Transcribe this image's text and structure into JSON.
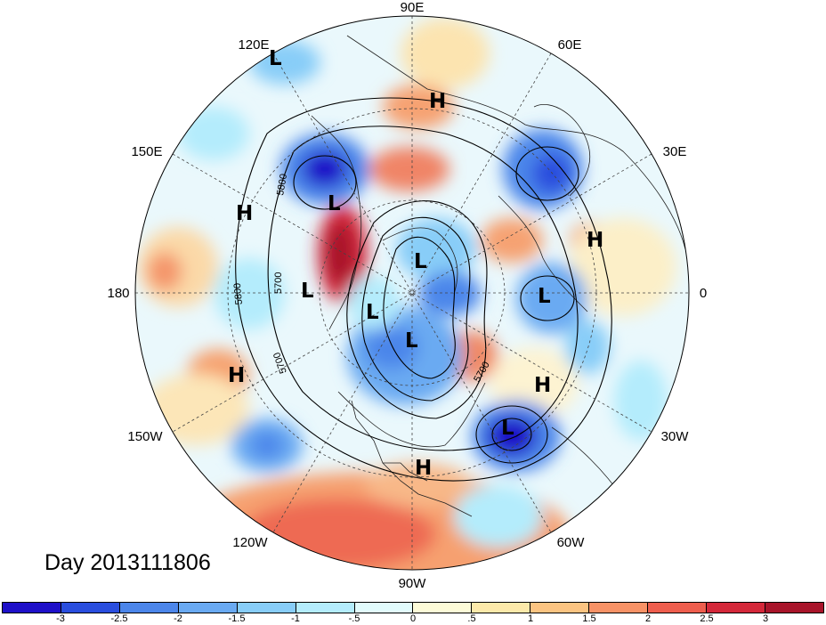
{
  "title": "Day 2013111806",
  "longitude_labels": [
    "90E",
    "60E",
    "30E",
    "0",
    "30W",
    "60W",
    "90W",
    "120W",
    "150W",
    "180",
    "150E",
    "120E"
  ],
  "contour_labels": [
    "5800",
    "5700",
    "5800",
    "5700",
    "5700"
  ],
  "pressure_centers": [
    {
      "type": "H",
      "color": "#000000"
    },
    {
      "type": "H"
    },
    {
      "type": "H"
    },
    {
      "type": "H"
    },
    {
      "type": "H"
    },
    {
      "type": "H"
    },
    {
      "type": "L"
    },
    {
      "type": "L"
    },
    {
      "type": "L"
    },
    {
      "type": "L"
    },
    {
      "type": "L"
    },
    {
      "type": "L"
    },
    {
      "type": "L"
    },
    {
      "type": "L"
    }
  ],
  "colorbar": {
    "colors": [
      "#1e10c8",
      "#2a4ede",
      "#4c86ea",
      "#6aaaf2",
      "#88cdf8",
      "#b4ecfc",
      "#e2fbfc",
      "#fdfbd8",
      "#fce9aa",
      "#fbc482",
      "#f79266",
      "#ee5e4e",
      "#d4283a",
      "#a8142a"
    ],
    "tick_labels": [
      "-3",
      "-2.5",
      "-2",
      "-1.5",
      "-1",
      "-.5",
      "0",
      ".5",
      "1",
      "1.5",
      "2",
      "2.5",
      "3"
    ]
  }
}
